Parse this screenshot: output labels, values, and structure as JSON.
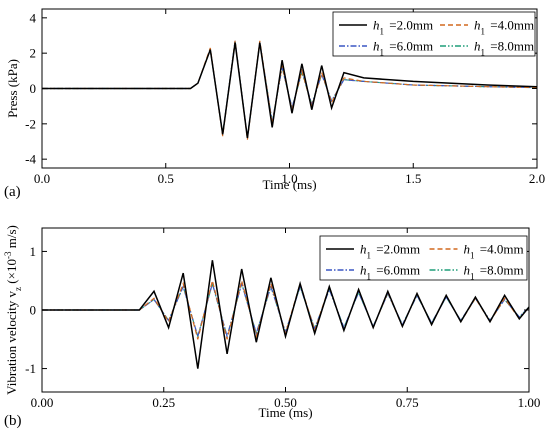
{
  "chart_data": [
    {
      "panel_label": "(a)",
      "type": "line",
      "xlabel": "Time (ms)",
      "ylabel": "Press (kPa)",
      "xlim": [
        0.0,
        2.0
      ],
      "ylim": [
        -4.5,
        4.5
      ],
      "xticks": [
        0.0,
        0.5,
        1.0,
        1.5,
        2.0
      ],
      "xtick_labels": [
        "0.0",
        "0.5",
        "1.0",
        "1.5",
        "2.0"
      ],
      "yticks": [
        -4,
        -2,
        0,
        2,
        4
      ],
      "ytick_labels": [
        "-4",
        "-2",
        "0",
        "2",
        "4"
      ],
      "grid": false,
      "legend_position": "top-right",
      "series": [
        {
          "symbol": "h",
          "subscript": "1",
          "value_text": "=2.0mm",
          "color": "#000000",
          "dash": "solid",
          "x": [
            0.0,
            0.5,
            0.6,
            0.63,
            0.68,
            0.73,
            0.78,
            0.83,
            0.88,
            0.93,
            0.97,
            1.01,
            1.05,
            1.09,
            1.13,
            1.17,
            1.22,
            1.3,
            1.5,
            1.8,
            2.0
          ],
          "y": [
            0,
            0,
            0,
            0.3,
            2.2,
            -2.6,
            2.6,
            -2.8,
            2.6,
            -2.2,
            1.6,
            -1.4,
            1.4,
            -1.2,
            1.3,
            -1.1,
            0.9,
            0.6,
            0.4,
            0.2,
            0.1
          ]
        },
        {
          "symbol": "h",
          "subscript": "1",
          "value_text": "=4.0mm",
          "color": "#d2691e",
          "dash": "dashed",
          "x": [
            0.0,
            0.5,
            0.6,
            0.63,
            0.68,
            0.73,
            0.78,
            0.83,
            0.88,
            0.93,
            0.97,
            1.01,
            1.05,
            1.09,
            1.13,
            1.17,
            1.22,
            1.3,
            1.5,
            1.8,
            2.0
          ],
          "y": [
            0,
            0,
            0,
            0.3,
            2.3,
            -2.7,
            2.7,
            -2.9,
            2.7,
            -2.0,
            1.3,
            -1.2,
            1.0,
            -1.0,
            0.9,
            -0.8,
            0.6,
            0.4,
            0.2,
            0.1,
            0.05
          ]
        },
        {
          "symbol": "h",
          "subscript": "1",
          "value_text": "=6.0mm",
          "color": "#3a56c4",
          "dash": "dashdot",
          "x": [
            0.0,
            0.5,
            0.6,
            0.63,
            0.68,
            0.73,
            0.78,
            0.83,
            0.88,
            0.93,
            0.97,
            1.01,
            1.05,
            1.09,
            1.13,
            1.17,
            1.22,
            1.3,
            1.5,
            1.8,
            2.0
          ],
          "y": [
            0,
            0,
            0,
            0.3,
            2.2,
            -2.6,
            2.7,
            -2.8,
            2.6,
            -1.9,
            1.2,
            -1.1,
            1.0,
            -0.9,
            0.8,
            -0.7,
            0.5,
            0.4,
            0.2,
            0.1,
            0.05
          ]
        },
        {
          "symbol": "h",
          "subscript": "1",
          "value_text": "=8.0mm",
          "color": "#1f9e78",
          "dash": "dashdotdot",
          "x": [
            0.0,
            0.5,
            0.6,
            0.63,
            0.68,
            0.73,
            0.78,
            0.83,
            0.88,
            0.93,
            0.97,
            1.01,
            1.05,
            1.09,
            1.13,
            1.17,
            1.22,
            1.3,
            1.5,
            1.8,
            2.0
          ],
          "y": [
            0,
            0,
            0,
            0.3,
            2.2,
            -2.6,
            2.7,
            -2.8,
            2.6,
            -1.9,
            1.2,
            -1.1,
            0.9,
            -0.9,
            0.8,
            -0.7,
            0.5,
            0.4,
            0.2,
            0.1,
            0.05
          ]
        }
      ]
    },
    {
      "panel_label": "(b)",
      "type": "line",
      "xlabel": "Time (ms)",
      "ylabel_prefix": "Vibration velocity v",
      "ylabel_sub": "z",
      "ylabel_mid": " (×10",
      "ylabel_sup": "-3",
      "ylabel_suffix": " m/s)",
      "xlim": [
        0.0,
        1.0
      ],
      "ylim": [
        -1.4,
        1.4
      ],
      "xticks": [
        0.0,
        0.25,
        0.5,
        0.75,
        1.0
      ],
      "xtick_labels": [
        "0.00",
        "0.25",
        "0.50",
        "0.75",
        "1.00"
      ],
      "yticks": [
        -1,
        0,
        1
      ],
      "ytick_labels": [
        "-1",
        "0",
        "1"
      ],
      "grid": false,
      "legend_position": "top-right",
      "series": [
        {
          "symbol": "h",
          "subscript": "1",
          "value_text": "=2.0mm",
          "color": "#000000",
          "dash": "solid",
          "x": [
            0.0,
            0.2,
            0.23,
            0.26,
            0.29,
            0.32,
            0.35,
            0.38,
            0.41,
            0.44,
            0.47,
            0.5,
            0.53,
            0.56,
            0.59,
            0.62,
            0.65,
            0.68,
            0.71,
            0.74,
            0.77,
            0.8,
            0.83,
            0.86,
            0.89,
            0.92,
            0.95,
            0.98,
            1.0
          ],
          "y": [
            0,
            0,
            0.32,
            -0.3,
            0.63,
            -1.0,
            0.85,
            -0.75,
            0.7,
            -0.55,
            0.55,
            -0.45,
            0.45,
            -0.4,
            0.4,
            -0.35,
            0.35,
            -0.3,
            0.32,
            -0.28,
            0.28,
            -0.25,
            0.25,
            -0.2,
            0.22,
            -0.2,
            0.25,
            -0.15,
            0.05
          ]
        },
        {
          "symbol": "h",
          "subscript": "1",
          "value_text": "=4.0mm",
          "color": "#d2691e",
          "dash": "dashed",
          "x": [
            0.0,
            0.2,
            0.23,
            0.26,
            0.29,
            0.32,
            0.35,
            0.38,
            0.41,
            0.44,
            0.47,
            0.5,
            0.53,
            0.56,
            0.59,
            0.62,
            0.65,
            0.68,
            0.71,
            0.74,
            0.77,
            0.8,
            0.83,
            0.86,
            0.89,
            0.92,
            0.95,
            0.98,
            1.0
          ],
          "y": [
            0,
            0,
            0.2,
            -0.2,
            0.45,
            -0.5,
            0.5,
            -0.5,
            0.5,
            -0.45,
            0.45,
            -0.4,
            0.45,
            -0.35,
            0.4,
            -0.35,
            0.35,
            -0.3,
            0.3,
            -0.28,
            0.28,
            -0.25,
            0.25,
            -0.2,
            0.2,
            -0.2,
            0.2,
            -0.15,
            0.05
          ]
        },
        {
          "symbol": "h",
          "subscript": "1",
          "value_text": "=6.0mm",
          "color": "#3a56c4",
          "dash": "dashdot",
          "x": [
            0.0,
            0.2,
            0.23,
            0.26,
            0.29,
            0.32,
            0.35,
            0.38,
            0.41,
            0.44,
            0.47,
            0.5,
            0.53,
            0.56,
            0.59,
            0.62,
            0.65,
            0.68,
            0.71,
            0.74,
            0.77,
            0.8,
            0.83,
            0.86,
            0.89,
            0.92,
            0.95,
            0.98,
            1.0
          ],
          "y": [
            0,
            0,
            0.18,
            -0.18,
            0.4,
            -0.45,
            0.45,
            -0.45,
            0.45,
            -0.4,
            0.4,
            -0.38,
            0.4,
            -0.32,
            0.35,
            -0.3,
            0.3,
            -0.28,
            0.28,
            -0.25,
            0.25,
            -0.22,
            0.22,
            -0.18,
            0.2,
            -0.18,
            0.18,
            -0.12,
            0.05
          ]
        },
        {
          "symbol": "h",
          "subscript": "1",
          "value_text": "=8.0mm",
          "color": "#1f9e78",
          "dash": "dashdotdot",
          "x": [
            0.0,
            0.2,
            0.23,
            0.26,
            0.29,
            0.32,
            0.35,
            0.38,
            0.41,
            0.44,
            0.47,
            0.5,
            0.53,
            0.56,
            0.59,
            0.62,
            0.65,
            0.68,
            0.71,
            0.74,
            0.77,
            0.8,
            0.83,
            0.86,
            0.89,
            0.92,
            0.95,
            0.98,
            1.0
          ],
          "y": [
            0,
            0,
            0.18,
            -0.18,
            0.4,
            -0.45,
            0.45,
            -0.45,
            0.45,
            -0.4,
            0.4,
            -0.38,
            0.4,
            -0.32,
            0.35,
            -0.3,
            0.3,
            -0.28,
            0.28,
            -0.25,
            0.25,
            -0.22,
            0.22,
            -0.18,
            0.2,
            -0.18,
            0.18,
            -0.12,
            0.05
          ]
        }
      ]
    }
  ]
}
